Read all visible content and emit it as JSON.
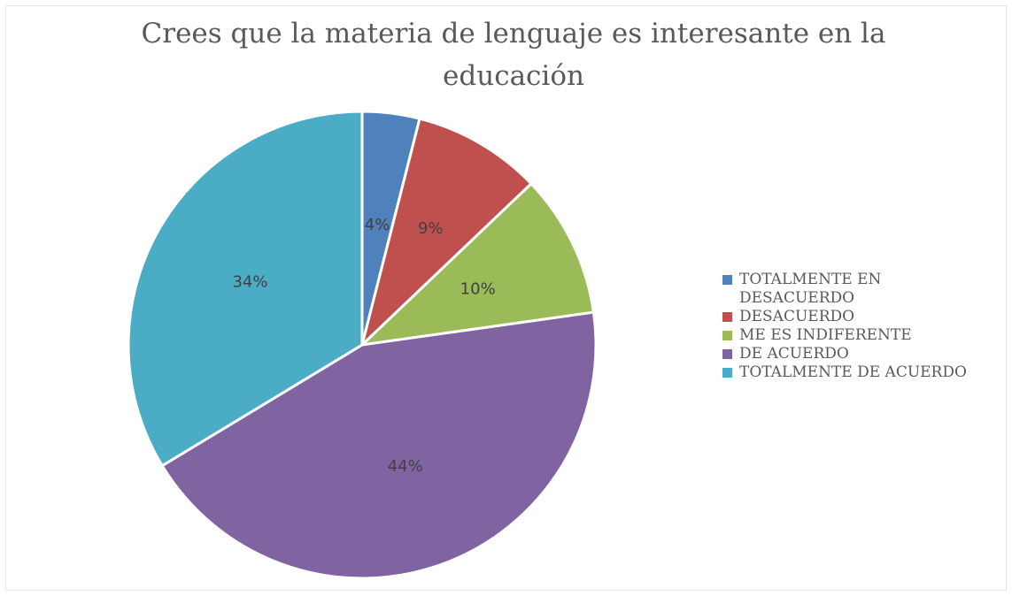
{
  "chart_data": {
    "type": "pie",
    "title": "Crees que la materia de lenguaje es interesante en la educación",
    "categories": [
      "TOTALMENTE EN DESACUERDO",
      "DESACUERDO",
      "ME ES INDIFERENTE",
      "DE ACUERDO",
      "TOTALMENTE DE ACUERDO"
    ],
    "values": [
      4,
      9,
      10,
      44,
      34
    ],
    "data_labels": [
      "4%",
      "9%",
      "10%",
      "44%",
      "34%"
    ],
    "colors": [
      "#4f81bd",
      "#c0504d",
      "#9bbb59",
      "#8064a2",
      "#4bacc6"
    ],
    "legend_position": "right",
    "start_angle": "top, clockwise"
  }
}
